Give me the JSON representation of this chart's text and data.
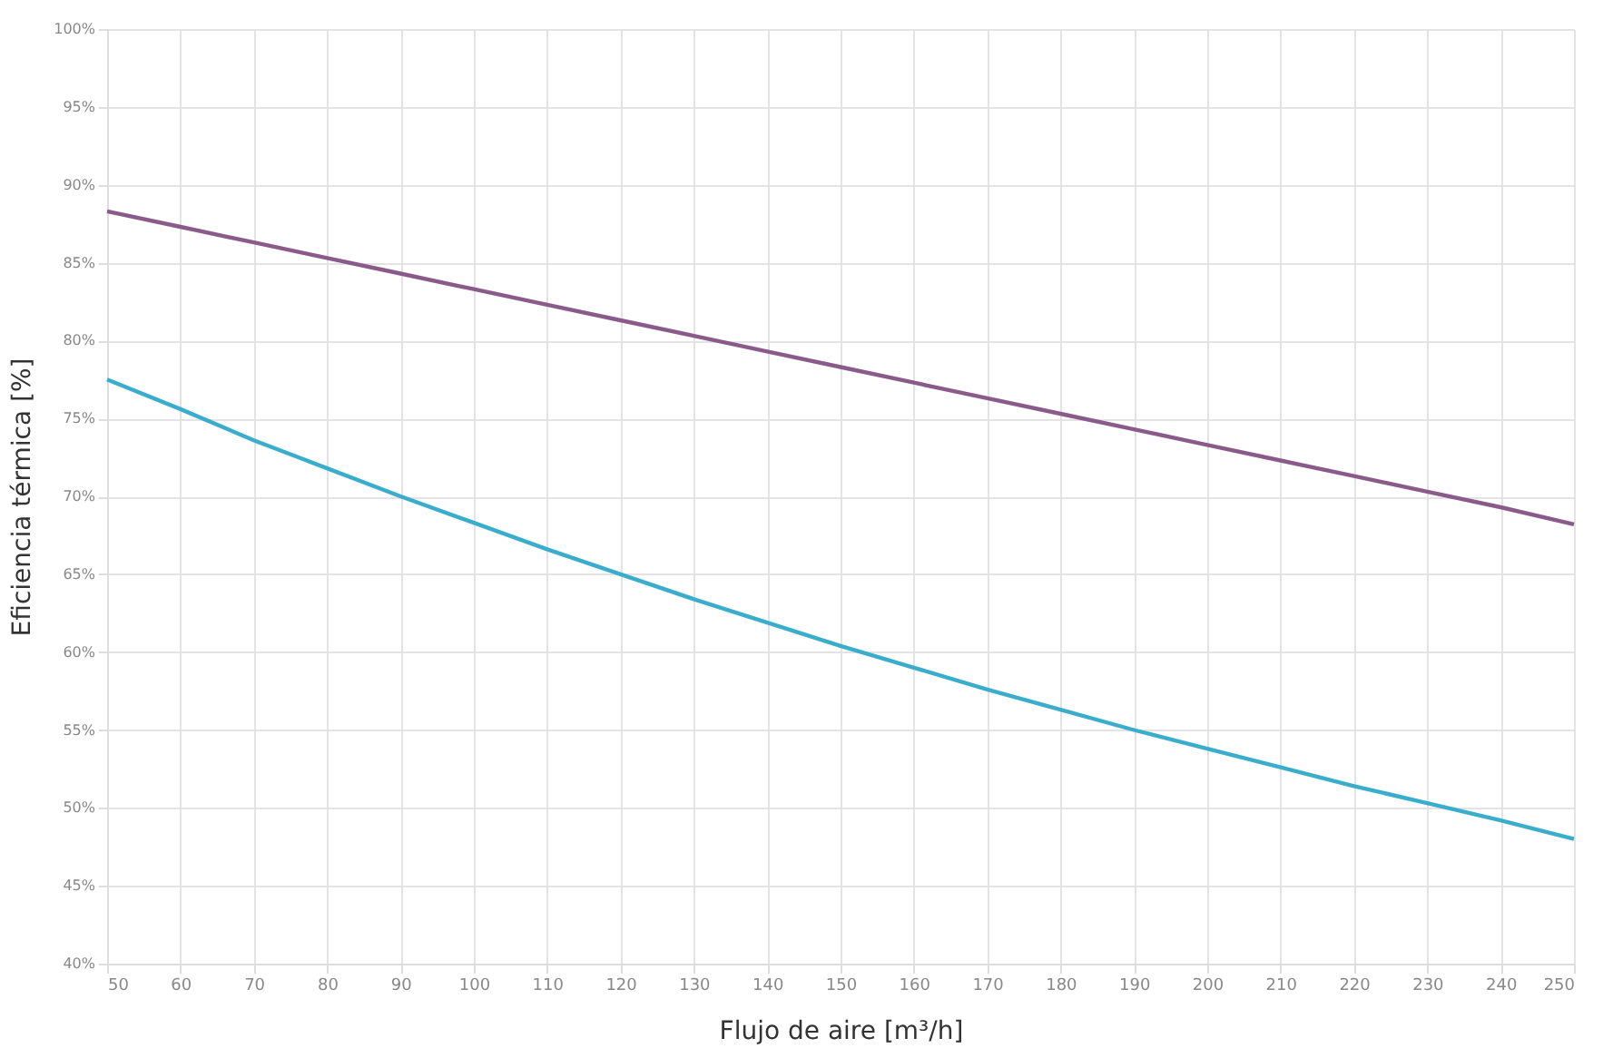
{
  "chart_data": {
    "type": "line",
    "xlabel": "Flujo de aire [m³/h]",
    "ylabel": "Eficiencia térmica [%]",
    "x": [
      50,
      60,
      70,
      80,
      90,
      100,
      110,
      120,
      130,
      140,
      150,
      160,
      170,
      180,
      190,
      200,
      210,
      220,
      230,
      240,
      250
    ],
    "series": [
      {
        "color": "#8a5a8a",
        "values": [
          88.3,
          87.3,
          86.3,
          85.3,
          84.3,
          83.3,
          82.3,
          81.3,
          80.3,
          79.3,
          78.3,
          77.3,
          76.3,
          75.3,
          74.3,
          73.3,
          72.3,
          71.3,
          70.3,
          69.3,
          68.2
        ]
      },
      {
        "color": "#3aaccc",
        "values": [
          77.5,
          75.6,
          73.6,
          71.8,
          70.0,
          68.3,
          66.6,
          65.0,
          63.4,
          61.9,
          60.4,
          59.0,
          57.6,
          56.3,
          55.0,
          53.8,
          52.6,
          51.4,
          50.3,
          49.2,
          48.0
        ]
      }
    ],
    "xlim": [
      50,
      250
    ],
    "xticks": [
      50,
      60,
      70,
      80,
      90,
      100,
      110,
      120,
      130,
      140,
      150,
      160,
      170,
      180,
      190,
      200,
      210,
      220,
      230,
      240,
      250
    ],
    "ylim": [
      40,
      100
    ],
    "yticks": [
      {
        "value": 40,
        "label": "40%"
      },
      {
        "value": 45,
        "label": "45%"
      },
      {
        "value": 50,
        "label": "50%"
      },
      {
        "value": 55,
        "label": "55%"
      },
      {
        "value": 60,
        "label": "60%"
      },
      {
        "value": 65,
        "label": "65%"
      },
      {
        "value": 70,
        "label": "70%"
      },
      {
        "value": 75,
        "label": "75%"
      },
      {
        "value": 80,
        "label": "80%"
      },
      {
        "value": 85,
        "label": "85%"
      },
      {
        "value": 90,
        "label": "90%"
      },
      {
        "value": 95,
        "label": "95%"
      },
      {
        "value": 100,
        "label": "100%"
      }
    ],
    "grid": true,
    "marker": "none",
    "line_style": "solid"
  }
}
